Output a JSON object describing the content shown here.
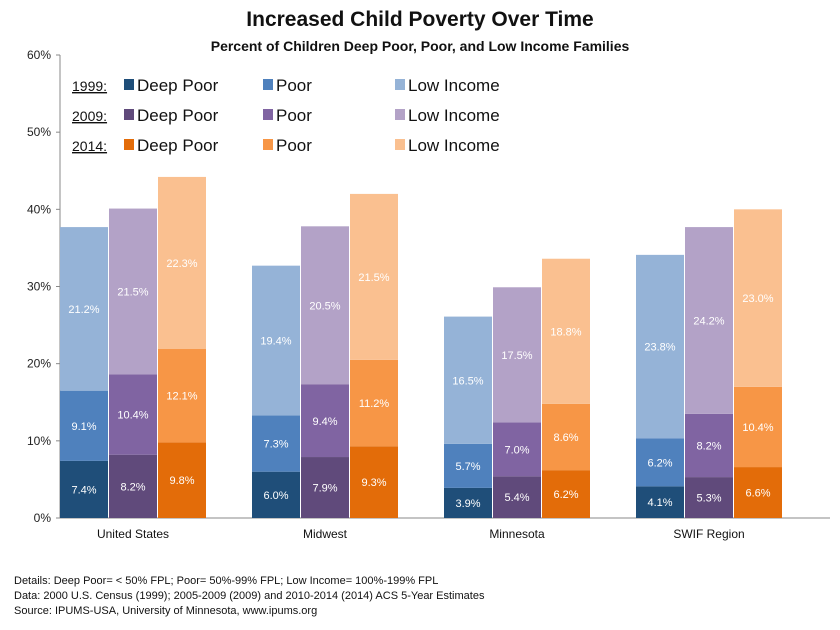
{
  "chart_data": {
    "type": "bar",
    "stacked": true,
    "title": "Increased Child Poverty Over Time",
    "subtitle": "Percent of Children Deep Poor, Poor, and Low Income Families",
    "ylim": [
      0,
      60
    ],
    "yticks": [
      0,
      10,
      20,
      30,
      40,
      50,
      60
    ],
    "ytick_labels": [
      "0%",
      "10%",
      "20%",
      "30%",
      "40%",
      "50%",
      "60%"
    ],
    "categories": [
      "United States",
      "Midwest",
      "Minnesota",
      "SWIF Region"
    ],
    "groups": [
      {
        "year": "1999",
        "legend_label": "1999:",
        "colors": {
          "deep_poor": "#1F4E79",
          "poor": "#4F81BD",
          "low_income": "#95B3D7"
        },
        "series": [
          {
            "name": "Deep Poor",
            "values": [
              7.4,
              6.0,
              3.9,
              4.1
            ],
            "labels": [
              "7.4%",
              "6.0%",
              "3.9%",
              "4.1%"
            ]
          },
          {
            "name": "Poor",
            "values": [
              9.1,
              7.3,
              5.7,
              6.2
            ],
            "labels": [
              "9.1%",
              "7.3%",
              "5.7%",
              "6.2%"
            ]
          },
          {
            "name": "Low Income",
            "values": [
              21.2,
              19.4,
              16.5,
              23.8
            ],
            "labels": [
              "21.2%",
              "19.4%",
              "16.5%",
              "23.8%"
            ]
          }
        ]
      },
      {
        "year": "2009",
        "legend_label": "2009:",
        "colors": {
          "deep_poor": "#604A7B",
          "poor": "#8064A2",
          "low_income": "#B3A2C7"
        },
        "series": [
          {
            "name": "Deep Poor",
            "values": [
              8.2,
              7.9,
              5.4,
              5.3
            ],
            "labels": [
              "8.2%",
              "7.9%",
              "5.4%",
              "5.3%"
            ]
          },
          {
            "name": "Poor",
            "values": [
              10.4,
              9.4,
              7.0,
              8.2
            ],
            "labels": [
              "10.4%",
              "9.4%",
              "7.0%",
              "8.2%"
            ]
          },
          {
            "name": "Low Income",
            "values": [
              21.5,
              20.5,
              17.5,
              24.2
            ],
            "labels": [
              "21.5%",
              "20.5%",
              "17.5%",
              "24.2%"
            ]
          }
        ]
      },
      {
        "year": "2014",
        "legend_label": "2014:",
        "colors": {
          "deep_poor": "#E36C09",
          "poor": "#F79646",
          "low_income": "#FAC090"
        },
        "series": [
          {
            "name": "Deep Poor",
            "values": [
              9.8,
              9.3,
              6.2,
              6.6
            ],
            "labels": [
              "9.8%",
              "9.3%",
              "6.2%",
              "6.6%"
            ]
          },
          {
            "name": "Poor",
            "values": [
              12.1,
              11.2,
              8.6,
              10.4
            ],
            "labels": [
              "12.1%",
              "11.2%",
              "8.6%",
              "10.4%"
            ]
          },
          {
            "name": "Low Income",
            "values": [
              22.3,
              21.5,
              18.8,
              23.0
            ],
            "labels": [
              "22.3%",
              "21.5%",
              "18.8%",
              "23.0%"
            ]
          }
        ]
      }
    ],
    "legend_placement": "top-left"
  },
  "footnotes": {
    "details": "Details: Deep Poor= < 50% FPL; Poor= 50%-99% FPL; Low Income= 100%-199% FPL",
    "data": "Data: 2000 U.S. Census (1999); 2005-2009 (2009) and 2010-2014 (2014) ACS 5-Year Estimates",
    "source": "Source: IPUMS-USA, University of Minnesota, www.ipums.org"
  }
}
